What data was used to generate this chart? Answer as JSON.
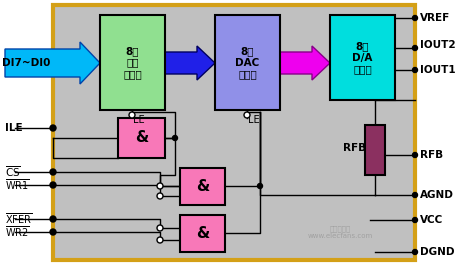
{
  "fig_w": 4.73,
  "fig_h": 2.65,
  "dpi": 100,
  "bg_gray": "#c0c0c0",
  "border_col": "#d4a017",
  "white_bg": "#ffffff",
  "box1": {
    "label": "8位\n输入\n寄存器",
    "fc": "#90e090",
    "ec": "#000000"
  },
  "box2": {
    "label": "8位\nDAC\n寄存器",
    "fc": "#9090e8",
    "ec": "#000000"
  },
  "box3": {
    "label": "8位\nD/A\n转换器",
    "fc": "#00dede",
    "ec": "#000000"
  },
  "and_fc": "#f878b8",
  "and_ec": "#000000",
  "rfb_fc": "#8b3060",
  "rfb_ec": "#000000",
  "arrow1_fc": "#00b8f8",
  "arrow1_ec": "#0044aa",
  "arrow2_fc": "#2020e8",
  "arrow2_ec": "#000060",
  "arrow3_fc": "#ee00ee",
  "arrow3_ec": "#880088",
  "lc": "#000000",
  "lw": 1.0,
  "text_color": "#000000",
  "watermark_color": "#aaaaaa"
}
